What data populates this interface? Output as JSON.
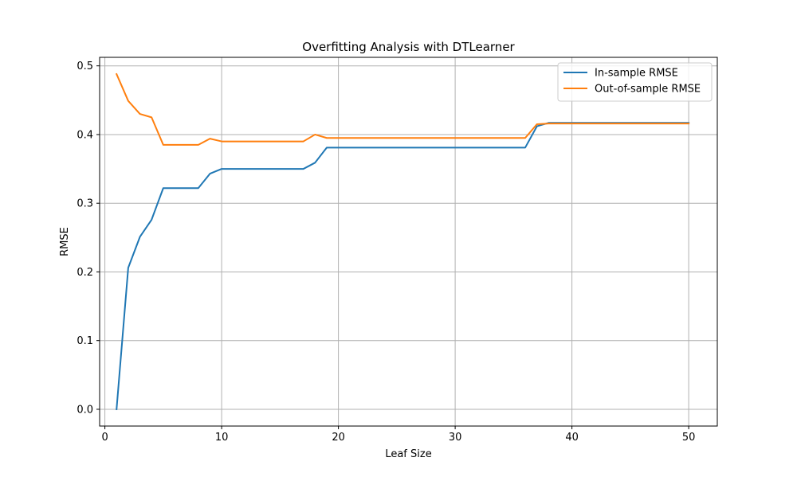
{
  "chart_data": {
    "type": "line",
    "title": "Overfitting Analysis with DTLearner",
    "xlabel": "Leaf Size",
    "ylabel": "RMSE",
    "xlim": [
      -0.45,
      52.45
    ],
    "ylim": [
      -0.0244,
      0.5124
    ],
    "xticks": [
      0,
      10,
      20,
      30,
      40,
      50
    ],
    "yticks": [
      0.0,
      0.1,
      0.2,
      0.3,
      0.4,
      0.5
    ],
    "xtick_labels": [
      "0",
      "10",
      "20",
      "30",
      "40",
      "50"
    ],
    "ytick_labels": [
      "0.0",
      "0.1",
      "0.2",
      "0.3",
      "0.4",
      "0.5"
    ],
    "grid": true,
    "legend_position": "top-right",
    "x": [
      1,
      2,
      3,
      4,
      5,
      6,
      7,
      8,
      9,
      10,
      11,
      12,
      13,
      14,
      15,
      16,
      17,
      18,
      19,
      20,
      21,
      22,
      23,
      24,
      25,
      26,
      27,
      28,
      29,
      30,
      31,
      32,
      33,
      34,
      35,
      36,
      37,
      38,
      39,
      40,
      41,
      42,
      43,
      44,
      45,
      46,
      47,
      48,
      49,
      50
    ],
    "series": [
      {
        "name": "In-sample RMSE",
        "color": "#1f77b4",
        "values": [
          0.0,
          0.206,
          0.251,
          0.276,
          0.322,
          0.322,
          0.322,
          0.322,
          0.343,
          0.35,
          0.35,
          0.35,
          0.35,
          0.35,
          0.35,
          0.35,
          0.35,
          0.359,
          0.381,
          0.381,
          0.381,
          0.381,
          0.381,
          0.381,
          0.381,
          0.381,
          0.381,
          0.381,
          0.381,
          0.381,
          0.381,
          0.381,
          0.381,
          0.381,
          0.381,
          0.381,
          0.412,
          0.417,
          0.417,
          0.417,
          0.417,
          0.417,
          0.417,
          0.417,
          0.417,
          0.417,
          0.417,
          0.417,
          0.417,
          0.417
        ]
      },
      {
        "name": "Out-of-sample RMSE",
        "color": "#ff7f0e",
        "values": [
          0.488,
          0.449,
          0.43,
          0.425,
          0.385,
          0.385,
          0.385,
          0.385,
          0.394,
          0.39,
          0.39,
          0.39,
          0.39,
          0.39,
          0.39,
          0.39,
          0.39,
          0.4,
          0.395,
          0.395,
          0.395,
          0.395,
          0.395,
          0.395,
          0.395,
          0.395,
          0.395,
          0.395,
          0.395,
          0.395,
          0.395,
          0.395,
          0.395,
          0.395,
          0.395,
          0.395,
          0.415,
          0.416,
          0.416,
          0.416,
          0.416,
          0.416,
          0.416,
          0.416,
          0.416,
          0.416,
          0.416,
          0.416,
          0.416,
          0.416
        ]
      }
    ]
  }
}
